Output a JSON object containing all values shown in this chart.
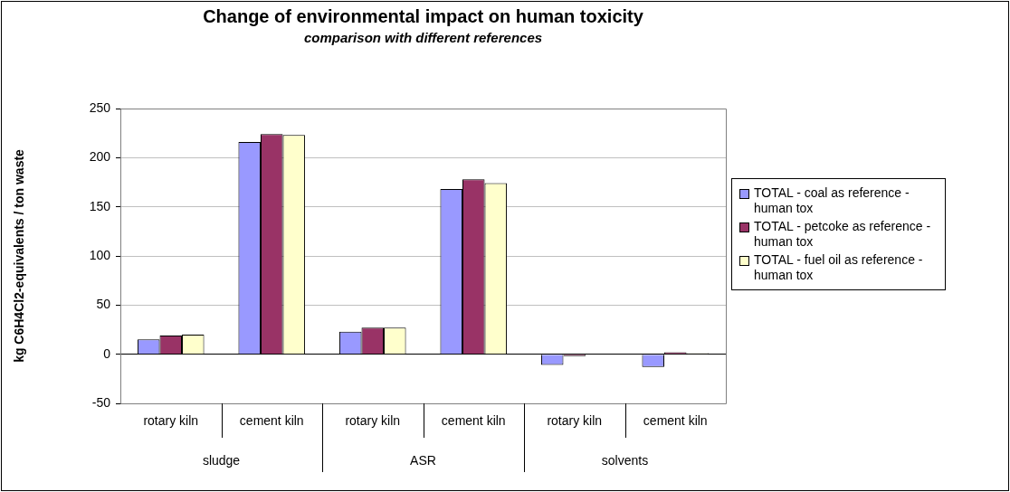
{
  "chart_data": {
    "type": "bar",
    "title": "Change of environmental impact on human toxicity",
    "subtitle": "comparison with different references",
    "ylabel": "kg C6H4Cl2-equivalents / ton waste",
    "categories": [
      "rotary kiln",
      "cement kiln",
      "rotary kiln",
      "cement kiln",
      "rotary kiln",
      "cement kiln"
    ],
    "annotations": [
      "sludge",
      "ASR",
      "solvents"
    ],
    "series": [
      {
        "name": "TOTAL - coal as reference - human tox",
        "color": "#9999ff",
        "values": [
          15,
          216,
          23,
          168,
          -11,
          -13
        ]
      },
      {
        "name": "TOTAL - petcoke as reference - human tox",
        "color": "#993366",
        "values": [
          19,
          224,
          27,
          178,
          -2,
          2
        ]
      },
      {
        "name": "TOTAL - fuel oil as reference - human tox",
        "color": "#ffffcc",
        "values": [
          20,
          223,
          27,
          174,
          0,
          1
        ]
      }
    ],
    "ylim": [
      -50,
      250
    ],
    "yticks": [
      -50,
      0,
      50,
      100,
      150,
      200,
      250
    ],
    "grid": "y",
    "legend": "right"
  }
}
